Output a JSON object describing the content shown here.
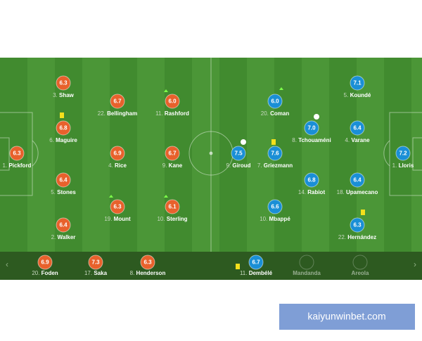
{
  "home": {
    "players": [
      {
        "number": "1.",
        "name": "Pickford",
        "rating": "6.3"
      },
      {
        "number": "3.",
        "name": "Shaw",
        "rating": "6.3"
      },
      {
        "number": "6.",
        "name": "Maguire",
        "rating": "6.8"
      },
      {
        "number": "5.",
        "name": "Stones",
        "rating": "6.4"
      },
      {
        "number": "2.",
        "name": "Walker",
        "rating": "6.4"
      },
      {
        "number": "22.",
        "name": "Bellingham",
        "rating": "6.7"
      },
      {
        "number": "4.",
        "name": "Rice",
        "rating": "6.9"
      },
      {
        "number": "19.",
        "name": "Mount",
        "rating": "6.3"
      },
      {
        "number": "11.",
        "name": "Rashford",
        "rating": "6.0"
      },
      {
        "number": "9.",
        "name": "Kane",
        "rating": "6.7"
      },
      {
        "number": "10.",
        "name": "Sterling",
        "rating": "6.1"
      }
    ],
    "subs": [
      {
        "number": "20.",
        "name": "Foden",
        "rating": "6.9"
      },
      {
        "number": "17.",
        "name": "Saka",
        "rating": "7.3"
      },
      {
        "number": "8.",
        "name": "Henderson",
        "rating": "6.3"
      }
    ]
  },
  "away": {
    "players": [
      {
        "number": "9.",
        "name": "Giroud",
        "rating": "7.5"
      },
      {
        "number": "7.",
        "name": "Griezmann",
        "rating": "7.6"
      },
      {
        "number": "20.",
        "name": "Coman",
        "rating": "6.0"
      },
      {
        "number": "10.",
        "name": "Mbappé",
        "rating": "6.6"
      },
      {
        "number": "8.",
        "name": "Tchouaméni",
        "rating": "7.0"
      },
      {
        "number": "14.",
        "name": "Rabiot",
        "rating": "6.8"
      },
      {
        "number": "5.",
        "name": "Koundé",
        "rating": "7.1"
      },
      {
        "number": "4.",
        "name": "Varane",
        "rating": "6.4"
      },
      {
        "number": "18.",
        "name": "Upamecano",
        "rating": "6.4"
      },
      {
        "number": "22.",
        "name": "Hernández",
        "rating": "6.3"
      },
      {
        "number": "1.",
        "name": "Lloris",
        "rating": "7.2"
      }
    ],
    "subs": [
      {
        "number": "11.",
        "name": "Dembélé",
        "rating": "6.7"
      },
      {
        "name": "Mandanda"
      },
      {
        "name": "Areola"
      }
    ]
  },
  "watermark": "kaiyunwinbet.com"
}
